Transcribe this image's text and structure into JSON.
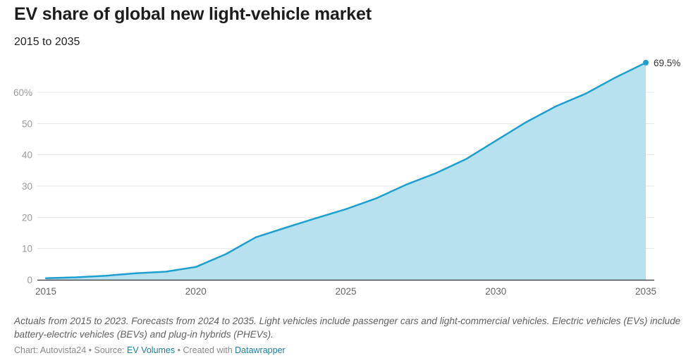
{
  "header": {
    "title": "EV share of global new light-vehicle market",
    "subtitle": "2015 to 2035"
  },
  "chart_data": {
    "type": "area",
    "title": "EV share of global new light-vehicle market",
    "subtitle": "2015 to 2035",
    "xlabel": "",
    "ylabel": "",
    "x": [
      2015,
      2016,
      2017,
      2018,
      2019,
      2020,
      2021,
      2022,
      2023,
      2024,
      2025,
      2026,
      2027,
      2028,
      2029,
      2030,
      2031,
      2032,
      2033,
      2034,
      2035
    ],
    "series": [
      {
        "name": "EV share",
        "values": [
          0.5,
          0.8,
          1.3,
          2.1,
          2.6,
          4.1,
          8.2,
          13.6,
          16.7,
          19.7,
          22.6,
          26.0,
          30.4,
          34.1,
          38.6,
          44.5,
          50.4,
          55.5,
          59.6,
          64.8,
          69.5
        ]
      }
    ],
    "xlim": [
      2015,
      2035
    ],
    "ylim": [
      0,
      70
    ],
    "x_ticks": [
      2015,
      2020,
      2025,
      2030,
      2035
    ],
    "x_tick_labels": [
      "2015",
      "2020",
      "2025",
      "2030",
      "2035"
    ],
    "y_ticks": [
      0,
      10,
      20,
      30,
      40,
      50,
      60
    ],
    "y_tick_labels": [
      "0",
      "10",
      "20",
      "30",
      "40",
      "50",
      "60%"
    ],
    "grid": true,
    "annotations": [
      {
        "x": 2035,
        "y": 69.5,
        "label": "69.5%"
      }
    ],
    "colors": {
      "line": "#1f9fcd",
      "fill": "#b8e1f0",
      "grid": "#e6e6e6",
      "axis": "#333333",
      "tick_label": "#9a9a9a",
      "x_tick_label": "#666666"
    }
  },
  "notes": "Actuals from 2015 to 2023. Forecasts from 2024 to 2035. Light vehicles include passenger cars and light-commercial vehicles. Electric vehicles (EVs) include battery-electric vehicles (BEVs) and plug-in hybrids (PHEVs).",
  "footer": {
    "chart_prefix": "Chart: Autovista24",
    "separator": " • ",
    "source_prefix": "Source: ",
    "source_link": "EV Volumes",
    "created_prefix": "Created with ",
    "created_link": "Datawrapper"
  }
}
